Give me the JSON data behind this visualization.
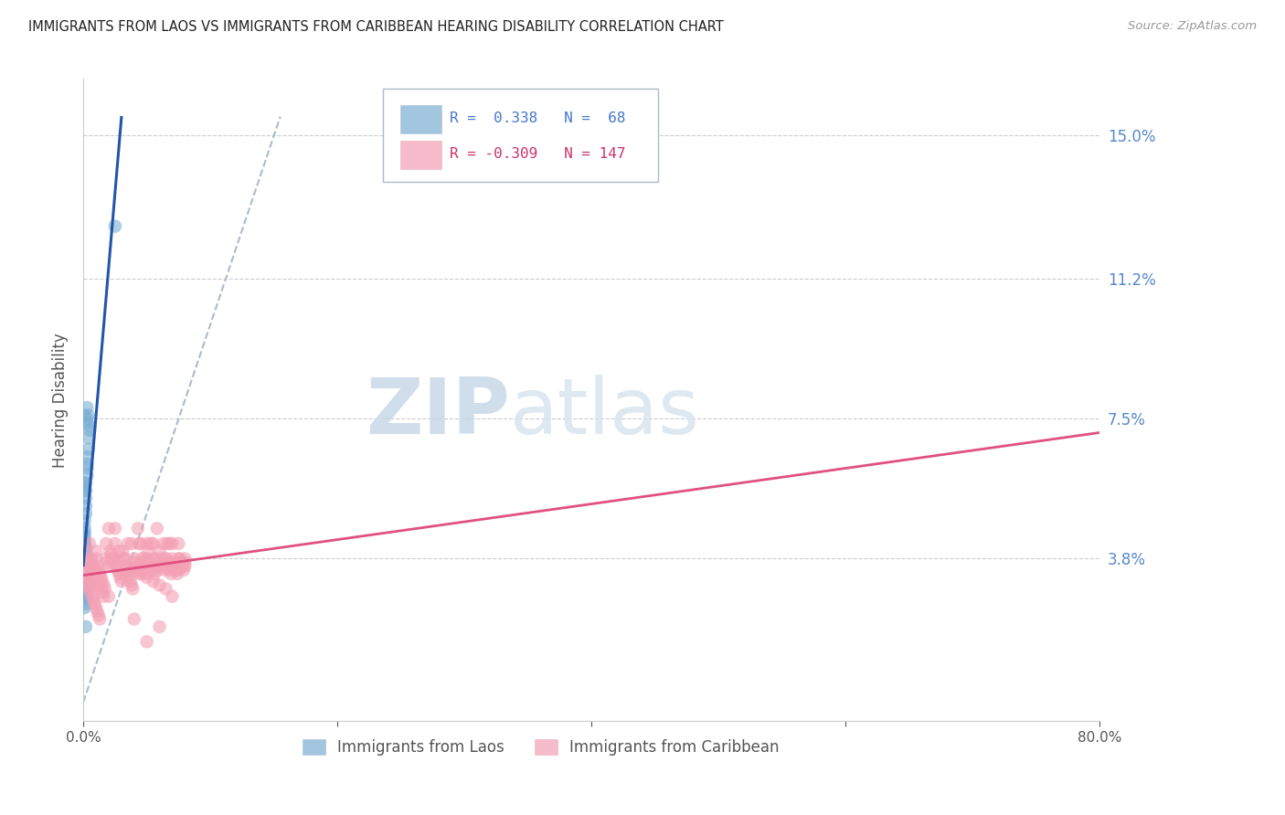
{
  "title": "IMMIGRANTS FROM LAOS VS IMMIGRANTS FROM CARIBBEAN HEARING DISABILITY CORRELATION CHART",
  "source": "Source: ZipAtlas.com",
  "ylabel": "Hearing Disability",
  "xlim": [
    0.0,
    0.8
  ],
  "ylim": [
    -0.005,
    0.165
  ],
  "ytick_vals": [
    0.038,
    0.075,
    0.112,
    0.15
  ],
  "ytick_labels": [
    "3.8%",
    "7.5%",
    "11.2%",
    "15.0%"
  ],
  "blue_color": "#7BAFD4",
  "pink_color": "#F4A0B5",
  "blue_line_color": "#2255AA",
  "pink_line_color": "#E05080",
  "diagonal_color": "#AABBCC",
  "laos_r": 0.338,
  "laos_n": 68,
  "carib_r": -0.309,
  "carib_n": 147,
  "laos_points": [
    [
      0.001,
      0.038
    ],
    [
      0.002,
      0.04
    ],
    [
      0.001,
      0.042
    ],
    [
      0.003,
      0.036
    ],
    [
      0.002,
      0.037
    ],
    [
      0.001,
      0.041
    ],
    [
      0.003,
      0.039
    ],
    [
      0.002,
      0.038
    ],
    [
      0.001,
      0.035
    ],
    [
      0.002,
      0.034
    ],
    [
      0.001,
      0.033
    ],
    [
      0.001,
      0.032
    ],
    [
      0.002,
      0.031
    ],
    [
      0.001,
      0.03
    ],
    [
      0.002,
      0.031
    ],
    [
      0.001,
      0.03
    ],
    [
      0.001,
      0.028
    ],
    [
      0.003,
      0.028
    ],
    [
      0.001,
      0.027
    ],
    [
      0.002,
      0.026
    ],
    [
      0.001,
      0.025
    ],
    [
      0.002,
      0.028
    ],
    [
      0.002,
      0.03
    ],
    [
      0.003,
      0.032
    ],
    [
      0.003,
      0.034
    ],
    [
      0.003,
      0.035
    ],
    [
      0.004,
      0.036
    ],
    [
      0.002,
      0.033
    ],
    [
      0.003,
      0.035
    ],
    [
      0.002,
      0.037
    ],
    [
      0.002,
      0.036
    ],
    [
      0.001,
      0.036
    ],
    [
      0.001,
      0.038
    ],
    [
      0.001,
      0.039
    ],
    [
      0.002,
      0.04
    ],
    [
      0.002,
      0.041
    ],
    [
      0.001,
      0.042
    ],
    [
      0.001,
      0.043
    ],
    [
      0.001,
      0.044
    ],
    [
      0.001,
      0.045
    ],
    [
      0.001,
      0.046
    ],
    [
      0.001,
      0.048
    ],
    [
      0.002,
      0.05
    ],
    [
      0.002,
      0.052
    ],
    [
      0.002,
      0.054
    ],
    [
      0.002,
      0.056
    ],
    [
      0.002,
      0.058
    ],
    [
      0.003,
      0.06
    ],
    [
      0.003,
      0.062
    ],
    [
      0.003,
      0.063
    ],
    [
      0.003,
      0.065
    ],
    [
      0.004,
      0.067
    ],
    [
      0.004,
      0.07
    ],
    [
      0.005,
      0.072
    ],
    [
      0.005,
      0.073
    ],
    [
      0.003,
      0.074
    ],
    [
      0.001,
      0.076
    ],
    [
      0.001,
      0.058
    ],
    [
      0.001,
      0.057
    ],
    [
      0.001,
      0.056
    ],
    [
      0.001,
      0.036
    ],
    [
      0.001,
      0.035
    ],
    [
      0.002,
      0.034
    ],
    [
      0.025,
      0.126
    ],
    [
      0.003,
      0.075
    ],
    [
      0.003,
      0.078
    ],
    [
      0.004,
      0.076
    ],
    [
      0.002,
      0.02
    ]
  ],
  "caribbean_points": [
    [
      0.001,
      0.038
    ],
    [
      0.002,
      0.04
    ],
    [
      0.003,
      0.036
    ],
    [
      0.004,
      0.035
    ],
    [
      0.005,
      0.037
    ],
    [
      0.006,
      0.034
    ],
    [
      0.007,
      0.033
    ],
    [
      0.008,
      0.032
    ],
    [
      0.009,
      0.031
    ],
    [
      0.01,
      0.038
    ],
    [
      0.011,
      0.036
    ],
    [
      0.012,
      0.035
    ],
    [
      0.013,
      0.034
    ],
    [
      0.014,
      0.033
    ],
    [
      0.015,
      0.032
    ],
    [
      0.016,
      0.031
    ],
    [
      0.017,
      0.03
    ],
    [
      0.018,
      0.038
    ],
    [
      0.019,
      0.037
    ],
    [
      0.02,
      0.036
    ],
    [
      0.021,
      0.04
    ],
    [
      0.022,
      0.039
    ],
    [
      0.023,
      0.038
    ],
    [
      0.024,
      0.037
    ],
    [
      0.025,
      0.046
    ],
    [
      0.026,
      0.036
    ],
    [
      0.027,
      0.035
    ],
    [
      0.028,
      0.034
    ],
    [
      0.029,
      0.033
    ],
    [
      0.03,
      0.032
    ],
    [
      0.031,
      0.04
    ],
    [
      0.032,
      0.038
    ],
    [
      0.033,
      0.036
    ],
    [
      0.034,
      0.035
    ],
    [
      0.035,
      0.034
    ],
    [
      0.036,
      0.033
    ],
    [
      0.037,
      0.032
    ],
    [
      0.038,
      0.031
    ],
    [
      0.039,
      0.03
    ],
    [
      0.04,
      0.038
    ],
    [
      0.041,
      0.037
    ],
    [
      0.042,
      0.036
    ],
    [
      0.043,
      0.035
    ],
    [
      0.044,
      0.042
    ],
    [
      0.045,
      0.034
    ],
    [
      0.046,
      0.038
    ],
    [
      0.047,
      0.036
    ],
    [
      0.048,
      0.035
    ],
    [
      0.049,
      0.034
    ],
    [
      0.05,
      0.038
    ],
    [
      0.051,
      0.04
    ],
    [
      0.052,
      0.037
    ],
    [
      0.053,
      0.036
    ],
    [
      0.054,
      0.035
    ],
    [
      0.055,
      0.042
    ],
    [
      0.056,
      0.034
    ],
    [
      0.057,
      0.038
    ],
    [
      0.058,
      0.036
    ],
    [
      0.059,
      0.035
    ],
    [
      0.06,
      0.04
    ],
    [
      0.061,
      0.038
    ],
    [
      0.062,
      0.037
    ],
    [
      0.063,
      0.036
    ],
    [
      0.064,
      0.035
    ],
    [
      0.065,
      0.038
    ],
    [
      0.066,
      0.042
    ],
    [
      0.067,
      0.036
    ],
    [
      0.068,
      0.035
    ],
    [
      0.069,
      0.034
    ],
    [
      0.07,
      0.038
    ],
    [
      0.071,
      0.037
    ],
    [
      0.072,
      0.036
    ],
    [
      0.073,
      0.035
    ],
    [
      0.074,
      0.034
    ],
    [
      0.075,
      0.042
    ],
    [
      0.076,
      0.038
    ],
    [
      0.077,
      0.037
    ],
    [
      0.078,
      0.036
    ],
    [
      0.079,
      0.035
    ],
    [
      0.08,
      0.037
    ],
    [
      0.002,
      0.036
    ],
    [
      0.003,
      0.035
    ],
    [
      0.004,
      0.034
    ],
    [
      0.005,
      0.033
    ],
    [
      0.001,
      0.037
    ],
    [
      0.006,
      0.038
    ],
    [
      0.007,
      0.037
    ],
    [
      0.008,
      0.036
    ],
    [
      0.009,
      0.035
    ],
    [
      0.01,
      0.034
    ],
    [
      0.011,
      0.033
    ],
    [
      0.012,
      0.032
    ],
    [
      0.013,
      0.031
    ],
    [
      0.014,
      0.03
    ],
    [
      0.015,
      0.029
    ],
    [
      0.016,
      0.028
    ],
    [
      0.002,
      0.033
    ],
    [
      0.003,
      0.032
    ],
    [
      0.004,
      0.031
    ],
    [
      0.005,
      0.03
    ],
    [
      0.006,
      0.029
    ],
    [
      0.007,
      0.028
    ],
    [
      0.008,
      0.027
    ],
    [
      0.009,
      0.026
    ],
    [
      0.01,
      0.025
    ],
    [
      0.011,
      0.024
    ],
    [
      0.012,
      0.023
    ],
    [
      0.013,
      0.022
    ],
    [
      0.018,
      0.042
    ],
    [
      0.02,
      0.046
    ],
    [
      0.023,
      0.038
    ],
    [
      0.028,
      0.04
    ],
    [
      0.033,
      0.038
    ],
    [
      0.038,
      0.042
    ],
    [
      0.043,
      0.046
    ],
    [
      0.048,
      0.038
    ],
    [
      0.053,
      0.042
    ],
    [
      0.058,
      0.046
    ],
    [
      0.063,
      0.042
    ],
    [
      0.068,
      0.042
    ],
    [
      0.04,
      0.035
    ],
    [
      0.045,
      0.034
    ],
    [
      0.05,
      0.033
    ],
    [
      0.055,
      0.032
    ],
    [
      0.06,
      0.031
    ],
    [
      0.065,
      0.03
    ],
    [
      0.07,
      0.042
    ],
    [
      0.075,
      0.038
    ],
    [
      0.08,
      0.038
    ],
    [
      0.025,
      0.038
    ],
    [
      0.035,
      0.042
    ],
    [
      0.05,
      0.016
    ],
    [
      0.06,
      0.02
    ],
    [
      0.07,
      0.028
    ],
    [
      0.03,
      0.034
    ],
    [
      0.04,
      0.022
    ],
    [
      0.02,
      0.028
    ],
    [
      0.05,
      0.042
    ],
    [
      0.065,
      0.038
    ],
    [
      0.075,
      0.035
    ],
    [
      0.08,
      0.036
    ],
    [
      0.025,
      0.042
    ],
    [
      0.035,
      0.036
    ],
    [
      0.045,
      0.042
    ],
    [
      0.055,
      0.038
    ],
    [
      0.065,
      0.036
    ],
    [
      0.005,
      0.042
    ],
    [
      0.01,
      0.04
    ]
  ]
}
